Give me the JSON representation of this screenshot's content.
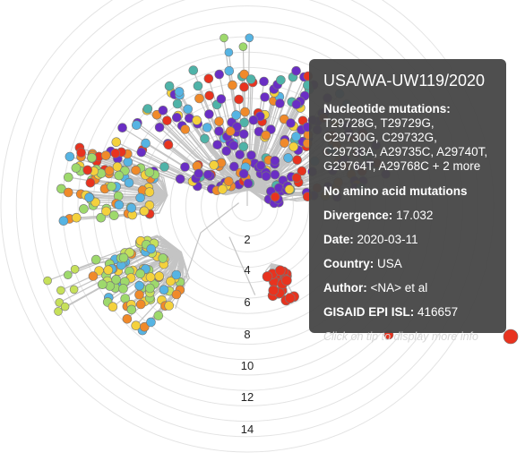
{
  "scale_labels": [
    "2",
    "4",
    "6",
    "8",
    "10",
    "12",
    "14"
  ],
  "clade_colors": {
    "purple": "#6a2ec4",
    "red": "#e8331f",
    "green": "#9ed96c",
    "yellow": "#f4d13c",
    "orange": "#f08a2a",
    "blue": "#56b4e3",
    "teal": "#4fb3a8",
    "lime": "#c6e05a"
  },
  "tooltip": {
    "title": "USA/WA-UW119/2020",
    "nt_label": "Nucleotide mutations:",
    "nt_value": "T29728G, T29729G, C29730G, C29732G, C29733A, A29735C, A29740T, G29764T, A29768C + 2 more",
    "aa_text": "No amino acid mutations",
    "divergence_label": "Divergence:",
    "divergence_value": "17.032",
    "date_label": "Date:",
    "date_value": "2020-03-11",
    "country_label": "Country:",
    "country_value": "USA",
    "author_label": "Author:",
    "author_value": "<NA> et al",
    "gisaid_label": "GISAID EPI ISL:",
    "gisaid_value": "416657",
    "footer": "Click on tip to display more info"
  }
}
